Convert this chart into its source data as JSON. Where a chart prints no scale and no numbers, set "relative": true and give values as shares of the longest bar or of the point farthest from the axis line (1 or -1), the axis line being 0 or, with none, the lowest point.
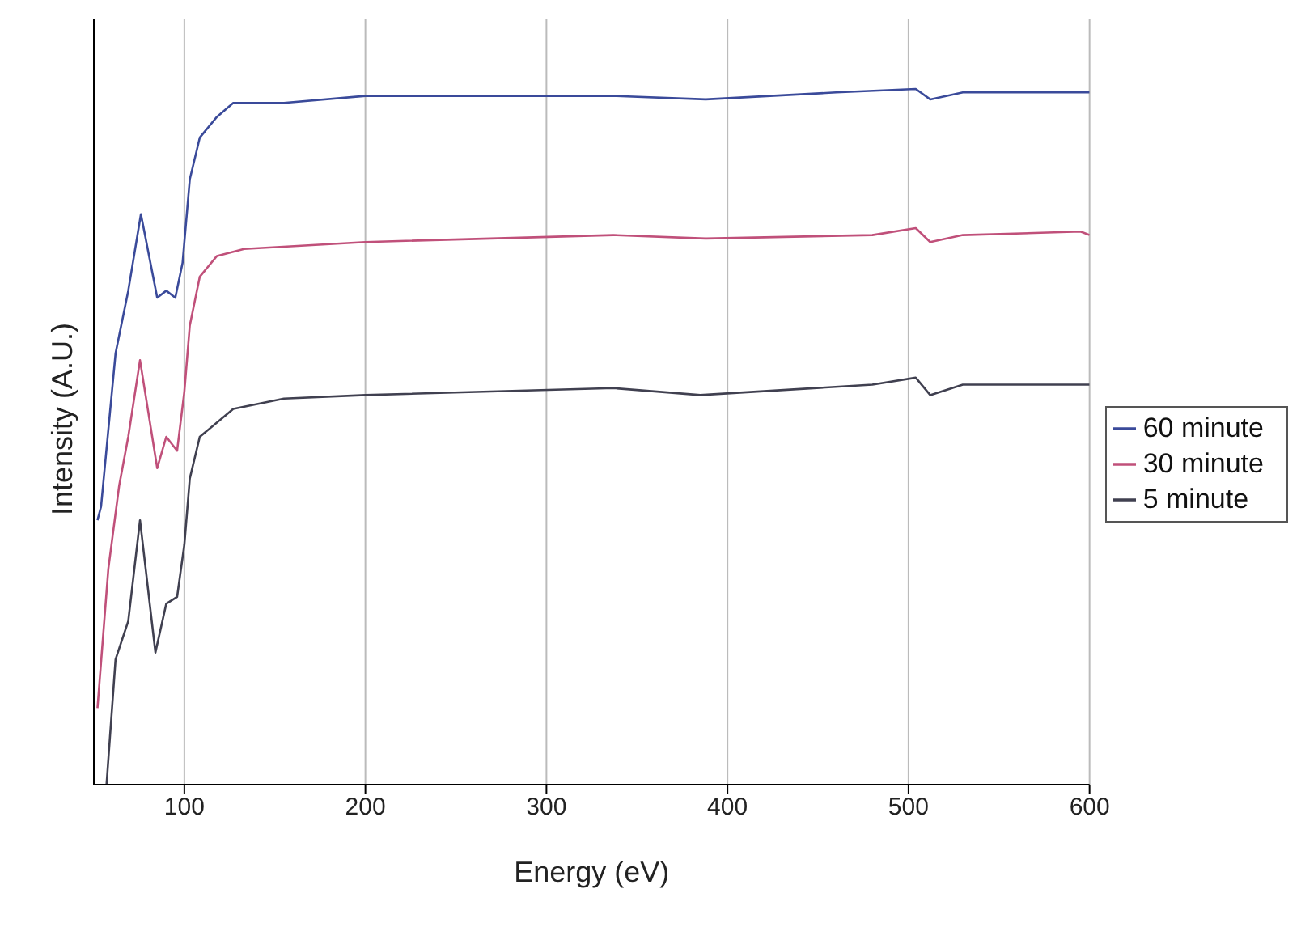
{
  "chart_data": {
    "type": "line",
    "xlabel": "Energy (eV)",
    "ylabel": "Intensity (A.U.)",
    "relative": true,
    "xlim": [
      50,
      600
    ],
    "xticks": [
      100,
      200,
      300,
      400,
      500,
      600
    ],
    "grid": "x",
    "legend": "right",
    "marker": "none",
    "line_style": "solid",
    "series": [
      {
        "name": "60 minute",
        "color": "#3a4a9a",
        "x": [
          52,
          54,
          62,
          69,
          76,
          85,
          90,
          95,
          99,
          103,
          108.5,
          118,
          127,
          155,
          200,
          337,
          388,
          460,
          504,
          512,
          530,
          600
        ],
        "values": [
          0.38,
          0.4,
          0.62,
          0.71,
          0.82,
          0.7,
          0.71,
          0.7,
          0.75,
          0.87,
          0.93,
          0.96,
          0.98,
          0.98,
          0.99,
          0.99,
          0.985,
          0.995,
          1.0,
          0.985,
          0.995,
          0.995
        ]
      },
      {
        "name": "30 minute",
        "color": "#c0507a",
        "x": [
          52,
          58,
          64,
          69,
          75.5,
          85,
          90,
          96,
          100,
          103,
          108.5,
          118,
          133,
          200,
          337,
          388,
          480,
          504,
          512,
          530,
          595,
          600
        ],
        "values": [
          0.11,
          0.31,
          0.43,
          0.5,
          0.61,
          0.455,
          0.5,
          0.48,
          0.565,
          0.66,
          0.73,
          0.76,
          0.77,
          0.78,
          0.79,
          0.785,
          0.79,
          0.8,
          0.78,
          0.79,
          0.795,
          0.79
        ]
      },
      {
        "name": "5 minute",
        "color": "#404050",
        "x": [
          57,
          62,
          69,
          75.5,
          84,
          90,
          96,
          100,
          103,
          108.5,
          127,
          155,
          200,
          337,
          385,
          480,
          504,
          512,
          530,
          600
        ],
        "values": [
          0,
          0.18,
          0.235,
          0.38,
          0.19,
          0.26,
          0.27,
          0.345,
          0.44,
          0.5,
          0.54,
          0.555,
          0.56,
          0.57,
          0.56,
          0.575,
          0.585,
          0.56,
          0.575,
          0.575
        ]
      }
    ]
  }
}
